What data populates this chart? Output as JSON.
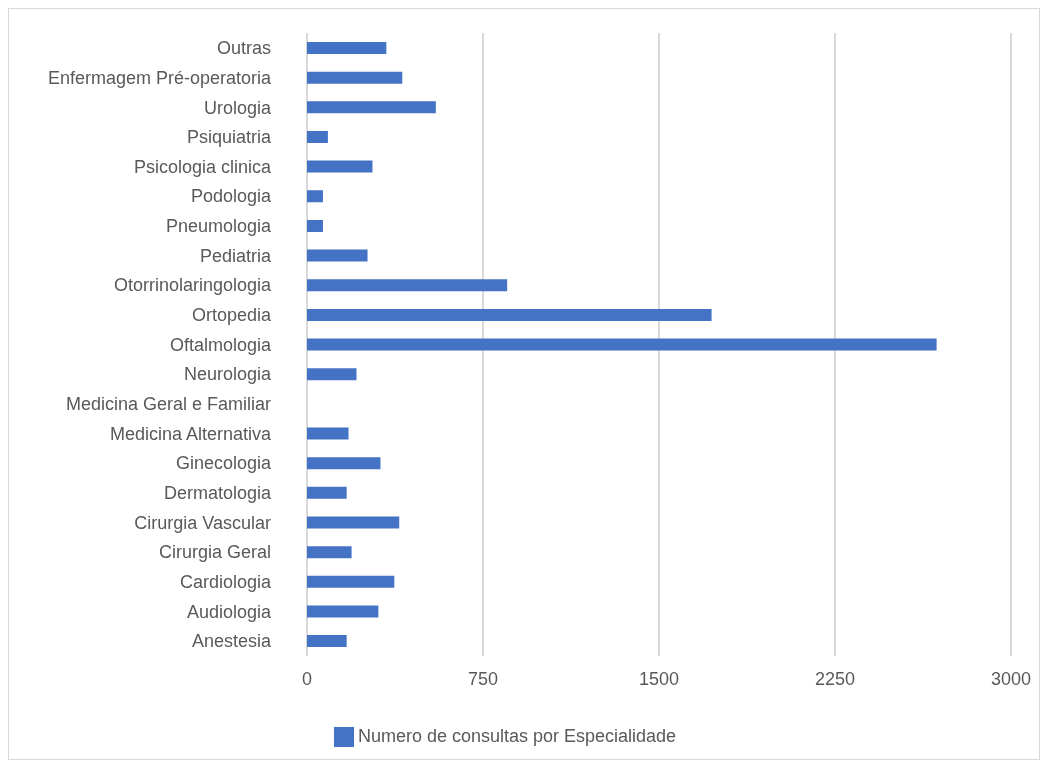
{
  "chart_data": {
    "type": "bar",
    "orientation": "horizontal",
    "categories": [
      "Outras",
      "Enfermagem Pré-operatoria",
      "Urologia",
      "Psiquiatria",
      "Psicologia clinica",
      "Podologia",
      "Pneumologia",
      "Pediatria",
      "Otorrinolaringologia",
      "Ortopedia",
      "Oftalmologia",
      "Neurologia",
      "Medicina Geral e Familiar",
      "Medicina Alternativa",
      "Ginecologia",
      "Dermatologia",
      "Cirurgia Vascular",
      "Cirurgia Geral",
      "Cardiologia",
      "Audiologia",
      "Anestesia"
    ],
    "series": [
      {
        "name": "Numero de consultas por Especialidade",
        "color": "#4472c4",
        "values": [
          338,
          406,
          549,
          89,
          279,
          68,
          68,
          258,
          853,
          1724,
          2683,
          211,
          0,
          177,
          313,
          169,
          393,
          190,
          372,
          304,
          169
        ]
      }
    ],
    "xlim": [
      0,
      3000
    ],
    "xticks": [
      0,
      750,
      1500,
      2250,
      3000
    ],
    "grid": "x",
    "legend": "bottom"
  }
}
